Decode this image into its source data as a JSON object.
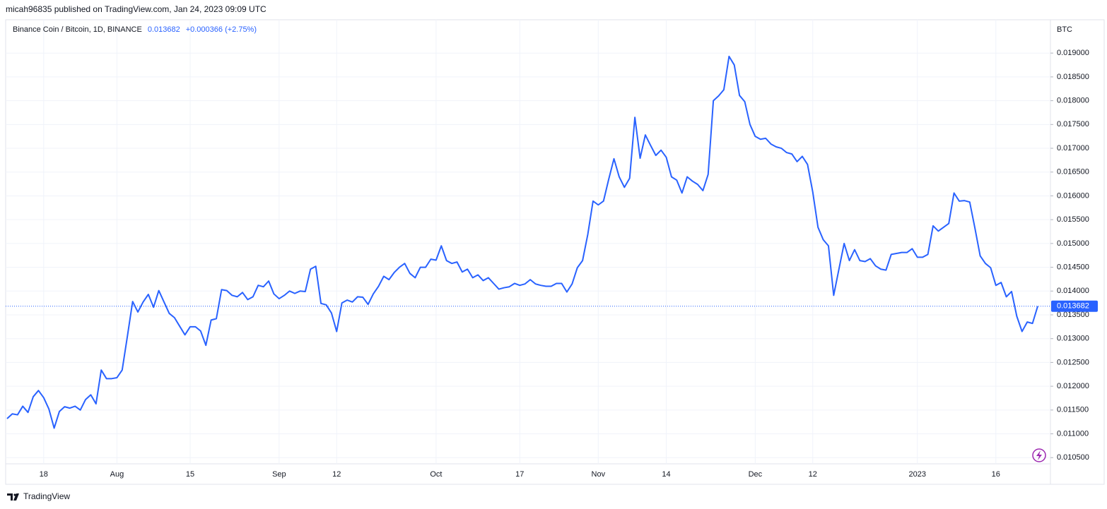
{
  "header": "micah96835 published on TradingView.com, Jan 24, 2023 09:09 UTC",
  "footer": "TradingView",
  "chart_data": {
    "type": "line",
    "title": "Binance Coin / Bitcoin, 1D, BINANCE",
    "change": "+0.000366 (+2.75%)",
    "ylabel": "BTC",
    "grid": true,
    "categories": [
      null,
      null,
      null,
      null,
      null,
      null,
      null,
      "18",
      null,
      null,
      null,
      null,
      null,
      null,
      null,
      null,
      null,
      null,
      null,
      null,
      null,
      "Aug",
      null,
      null,
      null,
      null,
      null,
      null,
      null,
      null,
      null,
      null,
      null,
      null,
      null,
      "15",
      null,
      null,
      null,
      null,
      null,
      null,
      null,
      null,
      null,
      null,
      null,
      null,
      null,
      null,
      null,
      null,
      "Sep",
      null,
      null,
      null,
      null,
      null,
      null,
      null,
      null,
      null,
      null,
      "12",
      null,
      null,
      null,
      null,
      null,
      null,
      null,
      null,
      null,
      null,
      null,
      null,
      null,
      null,
      null,
      null,
      null,
      null,
      "Oct",
      null,
      null,
      null,
      null,
      null,
      null,
      null,
      null,
      null,
      null,
      null,
      null,
      null,
      null,
      null,
      "17",
      null,
      null,
      null,
      null,
      null,
      null,
      null,
      null,
      null,
      null,
      null,
      null,
      null,
      null,
      "Nov",
      null,
      null,
      null,
      null,
      null,
      null,
      null,
      null,
      null,
      null,
      null,
      null,
      "14",
      null,
      null,
      null,
      null,
      null,
      null,
      null,
      null,
      null,
      null,
      null,
      null,
      null,
      null,
      null,
      null,
      "Dec",
      null,
      null,
      null,
      null,
      null,
      null,
      null,
      null,
      null,
      null,
      "12",
      null,
      null,
      null,
      null,
      null,
      null,
      null,
      null,
      null,
      null,
      null,
      null,
      null,
      null,
      null,
      null,
      null,
      null,
      null,
      "2023",
      null,
      null,
      null,
      null,
      null,
      null,
      null,
      null,
      null,
      null,
      null,
      null,
      null,
      null,
      "16",
      null,
      null,
      null,
      null,
      null,
      null,
      null,
      null
    ],
    "series": [
      {
        "name": "Binance Coin / Bitcoin",
        "color": "#2962ff",
        "values": [
          0.01132,
          0.01142,
          0.0114,
          0.01158,
          0.01145,
          0.01178,
          0.01191,
          0.01176,
          0.01152,
          0.01112,
          0.01147,
          0.01157,
          0.01154,
          0.01158,
          0.0115,
          0.01172,
          0.01182,
          0.01163,
          0.01234,
          0.01216,
          0.01216,
          0.01218,
          0.01234,
          0.01305,
          0.01378,
          0.01356,
          0.01377,
          0.01393,
          0.01366,
          0.01401,
          0.01377,
          0.01353,
          0.01344,
          0.01326,
          0.01308,
          0.01325,
          0.01325,
          0.01316,
          0.01286,
          0.01339,
          0.01342,
          0.01403,
          0.01401,
          0.01391,
          0.01388,
          0.01397,
          0.01382,
          0.01388,
          0.01412,
          0.01409,
          0.01421,
          0.01394,
          0.01384,
          0.01391,
          0.014,
          0.01395,
          0.014,
          0.01399,
          0.01446,
          0.01452,
          0.01374,
          0.01371,
          0.01354,
          0.01315,
          0.01375,
          0.01381,
          0.01377,
          0.01388,
          0.01387,
          0.01372,
          0.01394,
          0.0141,
          0.01431,
          0.01424,
          0.01439,
          0.0145,
          0.01458,
          0.01437,
          0.01428,
          0.0145,
          0.0145,
          0.01467,
          0.01465,
          0.01495,
          0.01464,
          0.01458,
          0.01461,
          0.0144,
          0.01446,
          0.01428,
          0.01434,
          0.01422,
          0.01428,
          0.01416,
          0.01404,
          0.01407,
          0.01409,
          0.01416,
          0.01412,
          0.01415,
          0.01424,
          0.01415,
          0.01412,
          0.0141,
          0.0141,
          0.01416,
          0.01416,
          0.01398,
          0.01415,
          0.01449,
          0.01464,
          0.01519,
          0.01589,
          0.01581,
          0.01589,
          0.01635,
          0.01678,
          0.0164,
          0.01618,
          0.01637,
          0.01765,
          0.01679,
          0.01728,
          0.01706,
          0.01685,
          0.01696,
          0.01681,
          0.0164,
          0.01633,
          0.01606,
          0.0164,
          0.01631,
          0.01624,
          0.01611,
          0.01645,
          0.018,
          0.0181,
          0.01823,
          0.01893,
          0.01875,
          0.01811,
          0.01798,
          0.0175,
          0.01725,
          0.01719,
          0.01721,
          0.01709,
          0.01703,
          0.017,
          0.01691,
          0.01688,
          0.01672,
          0.01683,
          0.01666,
          0.01608,
          0.01534,
          0.01508,
          0.01495,
          0.01391,
          0.01446,
          0.015,
          0.01464,
          0.01487,
          0.01464,
          0.01462,
          0.01468,
          0.01453,
          0.01446,
          0.01444,
          0.01477,
          0.01479,
          0.01481,
          0.01481,
          0.01489,
          0.01471,
          0.01471,
          0.01477,
          0.01537,
          0.01526,
          0.01534,
          0.01542,
          0.01606,
          0.01589,
          0.0159,
          0.01587,
          0.01532,
          0.01474,
          0.01458,
          0.01449,
          0.01412,
          0.01418,
          0.01388,
          0.01399,
          0.01347,
          0.01315,
          0.01335,
          0.01332,
          0.013682
        ]
      }
    ],
    "ylim": [
      0.01037,
      0.0197
    ],
    "yticks": [
      {
        "value": 0.0105,
        "label": "0.010500"
      },
      {
        "value": 0.011,
        "label": "0.011000"
      },
      {
        "value": 0.0115,
        "label": "0.011500"
      },
      {
        "value": 0.012,
        "label": "0.012000"
      },
      {
        "value": 0.0125,
        "label": "0.012500"
      },
      {
        "value": 0.013,
        "label": "0.013000"
      },
      {
        "value": 0.0135,
        "label": "0.013500"
      },
      {
        "value": 0.014,
        "label": "0.014000"
      },
      {
        "value": 0.0145,
        "label": "0.014500"
      },
      {
        "value": 0.015,
        "label": "0.015000"
      },
      {
        "value": 0.0155,
        "label": "0.015500"
      },
      {
        "value": 0.016,
        "label": "0.016000"
      },
      {
        "value": 0.0165,
        "label": "0.016500"
      },
      {
        "value": 0.017,
        "label": "0.017000"
      },
      {
        "value": 0.0175,
        "label": "0.017500"
      },
      {
        "value": 0.018,
        "label": "0.018000"
      },
      {
        "value": 0.0185,
        "label": "0.018500"
      },
      {
        "value": 0.019,
        "label": "0.019000"
      }
    ]
  }
}
